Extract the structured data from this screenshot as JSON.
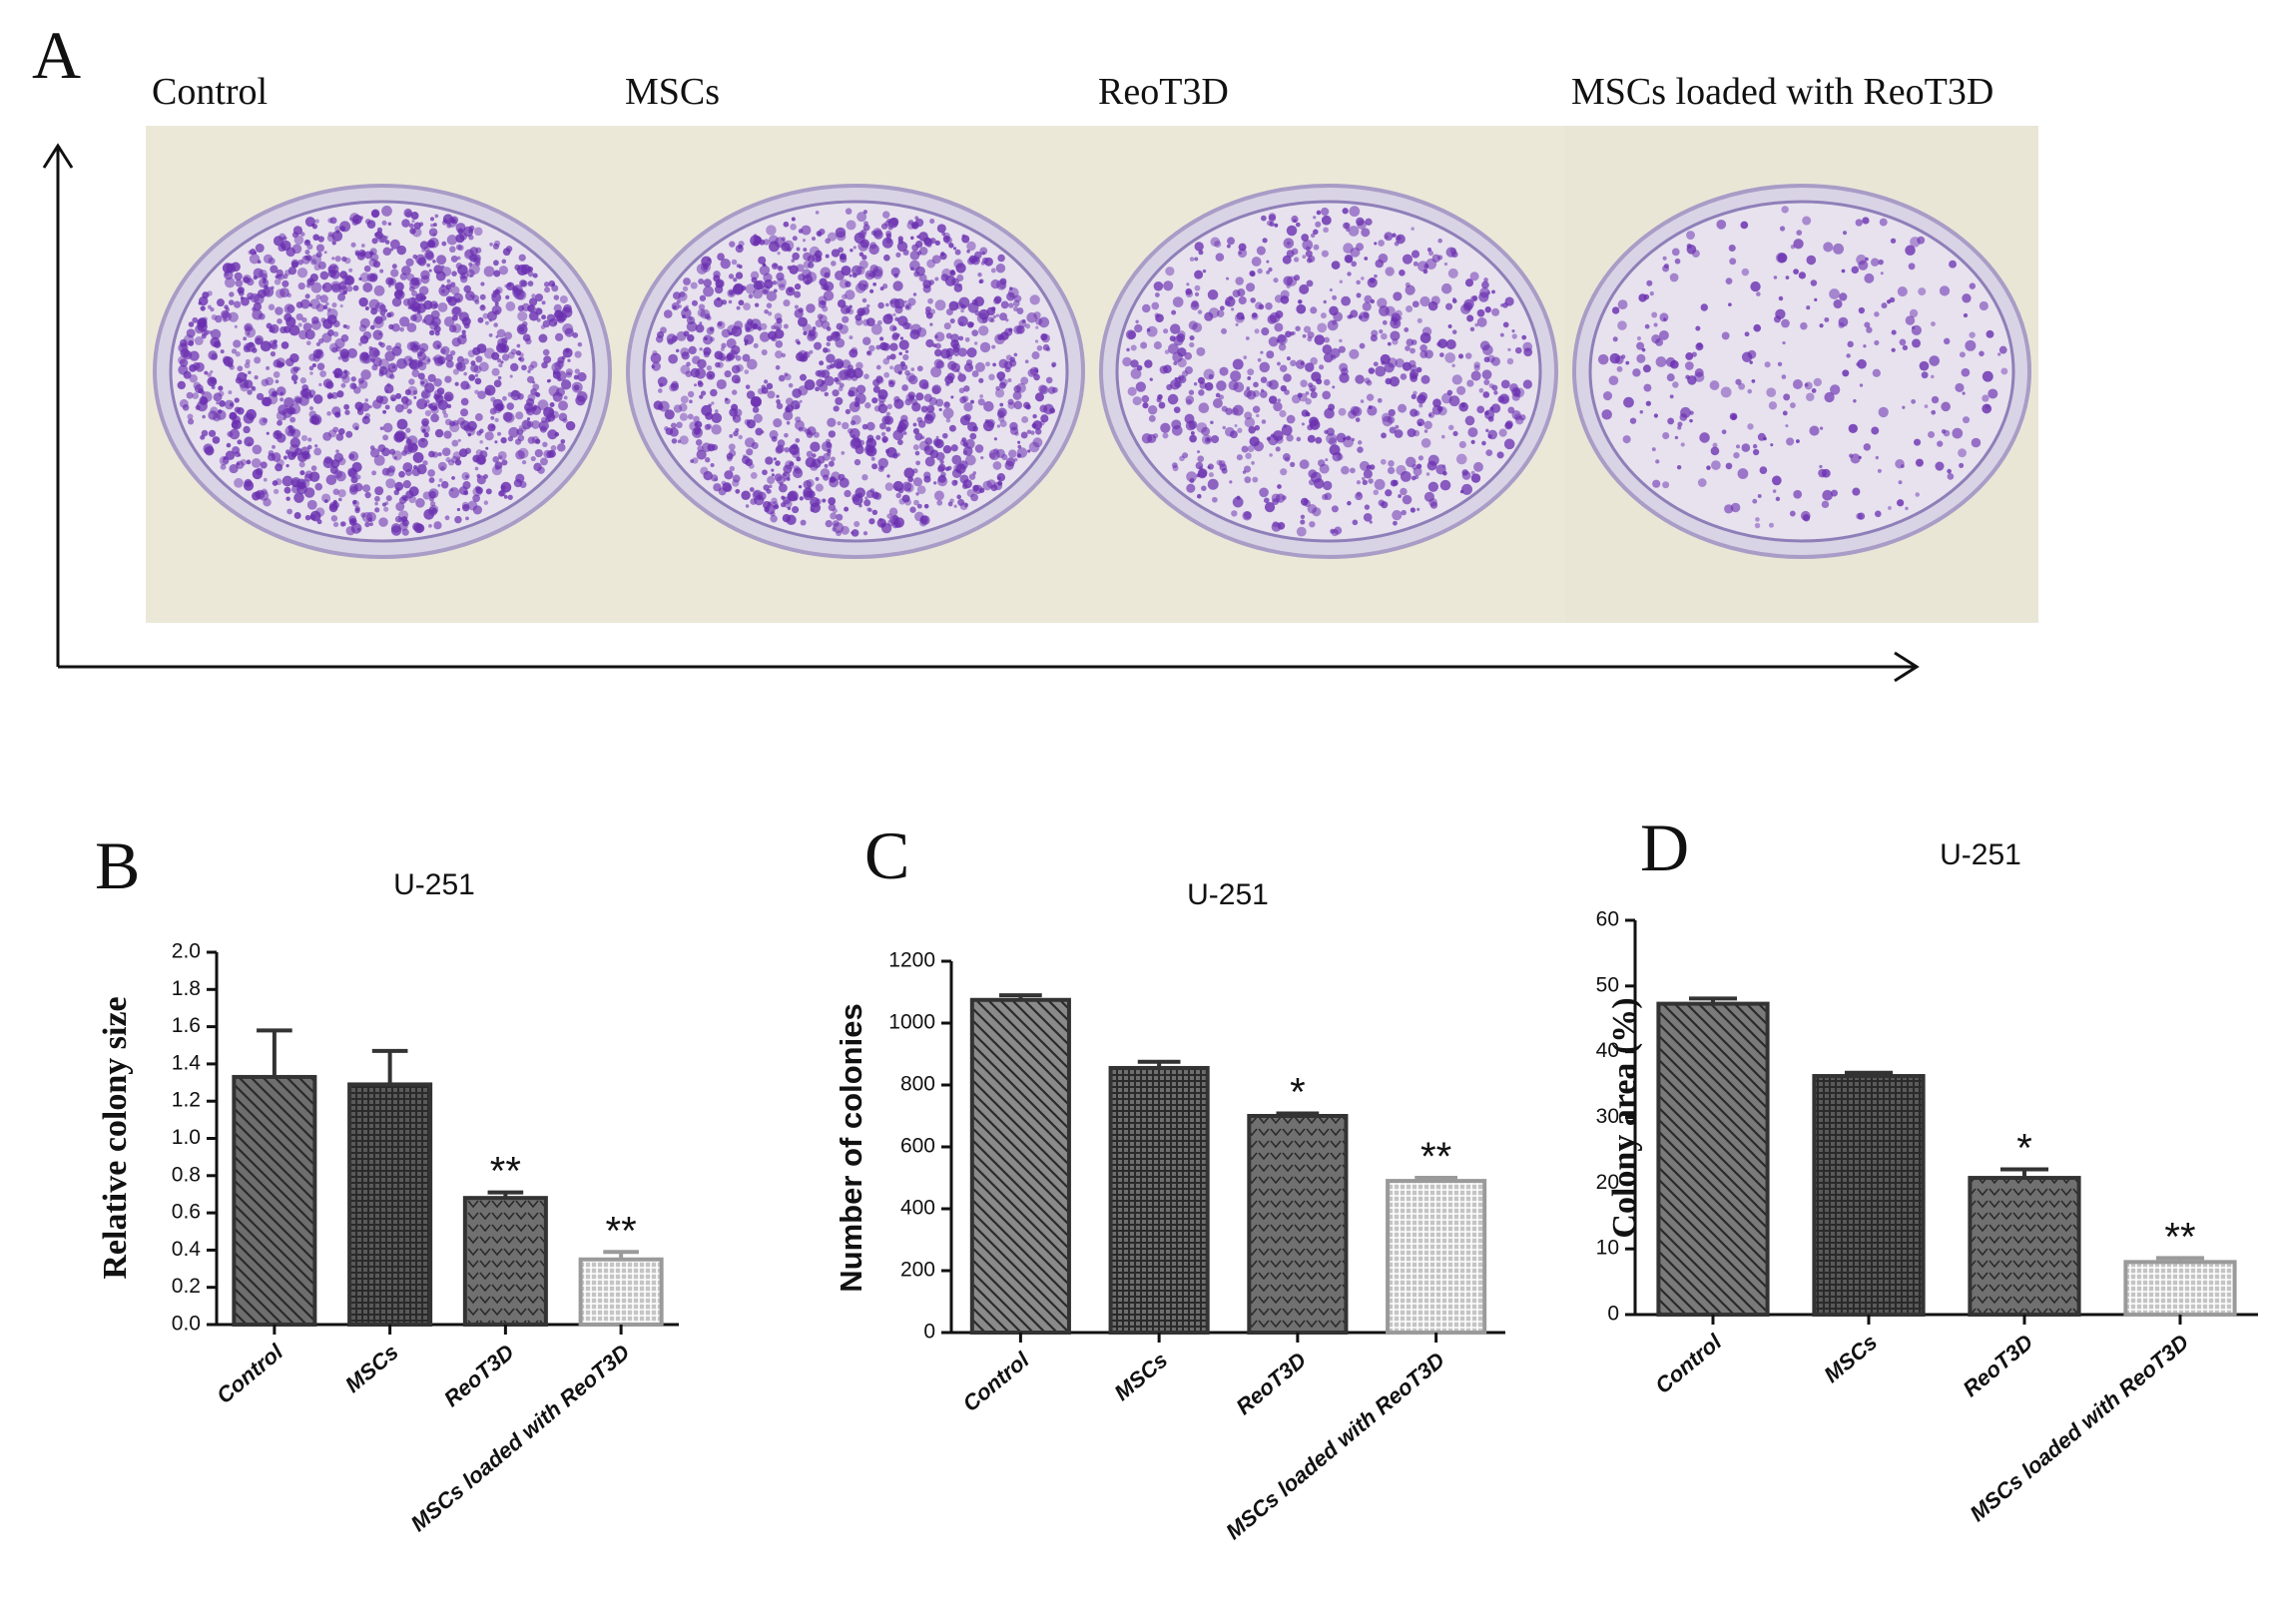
{
  "panel_a": {
    "letter": "A",
    "labels": [
      "Control",
      "MSCs",
      "ReoT3D",
      "MSCs loaded with ReoT3D"
    ]
  },
  "chart_data": [
    {
      "type": "bar",
      "panel": "B",
      "title": "U-251",
      "ylabel": "Relative colony size",
      "categories": [
        "Control",
        "MSCs",
        "ReoT3D",
        "MSCs loaded with ReoT3D"
      ],
      "values": [
        1.33,
        1.29,
        0.68,
        0.35
      ],
      "errors": [
        0.25,
        0.18,
        0.03,
        0.04
      ],
      "annotations": [
        null,
        null,
        "**",
        "**"
      ],
      "colors": [
        "#6e6e6e",
        "#5a5a5a",
        "#707070",
        "#c4c4c4"
      ],
      "ylim": [
        0,
        2
      ],
      "yticks": [
        {
          "value": 0,
          "label": "0.0"
        },
        0.2,
        0.4,
        0.6,
        0.8,
        {
          "value": 1,
          "label": "1.0"
        },
        1.2,
        1.4,
        1.6,
        1.8,
        {
          "value": 2,
          "label": "2.0"
        }
      ]
    },
    {
      "type": "bar",
      "panel": "C",
      "title": "U-251",
      "ylabel": "Number of colonies",
      "categories": [
        "Control",
        "MSCs",
        "ReoT3D",
        "MSCs loaded with ReoT3D"
      ],
      "values": [
        1075,
        855,
        700,
        490
      ],
      "errors": [
        15,
        20,
        8,
        10
      ],
      "annotations": [
        null,
        null,
        "*",
        "**"
      ],
      "colors": [
        "#8a8a8a",
        "#6e6e6e",
        "#707070",
        "#c4c4c4"
      ],
      "ylim": [
        0,
        1200
      ],
      "yticks": [
        0,
        200,
        400,
        600,
        800,
        1000,
        1200
      ]
    },
    {
      "type": "bar",
      "panel": "D",
      "title": "U-251",
      "ylabel": "Colony area (%)",
      "categories": [
        "Control",
        "MSCs",
        "ReoT3D",
        "MSCs loaded with ReoT3D"
      ],
      "values": [
        47.3,
        36.3,
        20.8,
        8
      ],
      "errors": [
        0.8,
        0.5,
        1.3,
        0.6
      ],
      "annotations": [
        null,
        null,
        "*",
        "**"
      ],
      "colors": [
        "#7a7a7a",
        "#5a5a5a",
        "#707070",
        "#c4c4c4"
      ],
      "ylim": [
        0,
        60
      ],
      "yticks": [
        0,
        10,
        20,
        30,
        40,
        50,
        60
      ]
    }
  ]
}
